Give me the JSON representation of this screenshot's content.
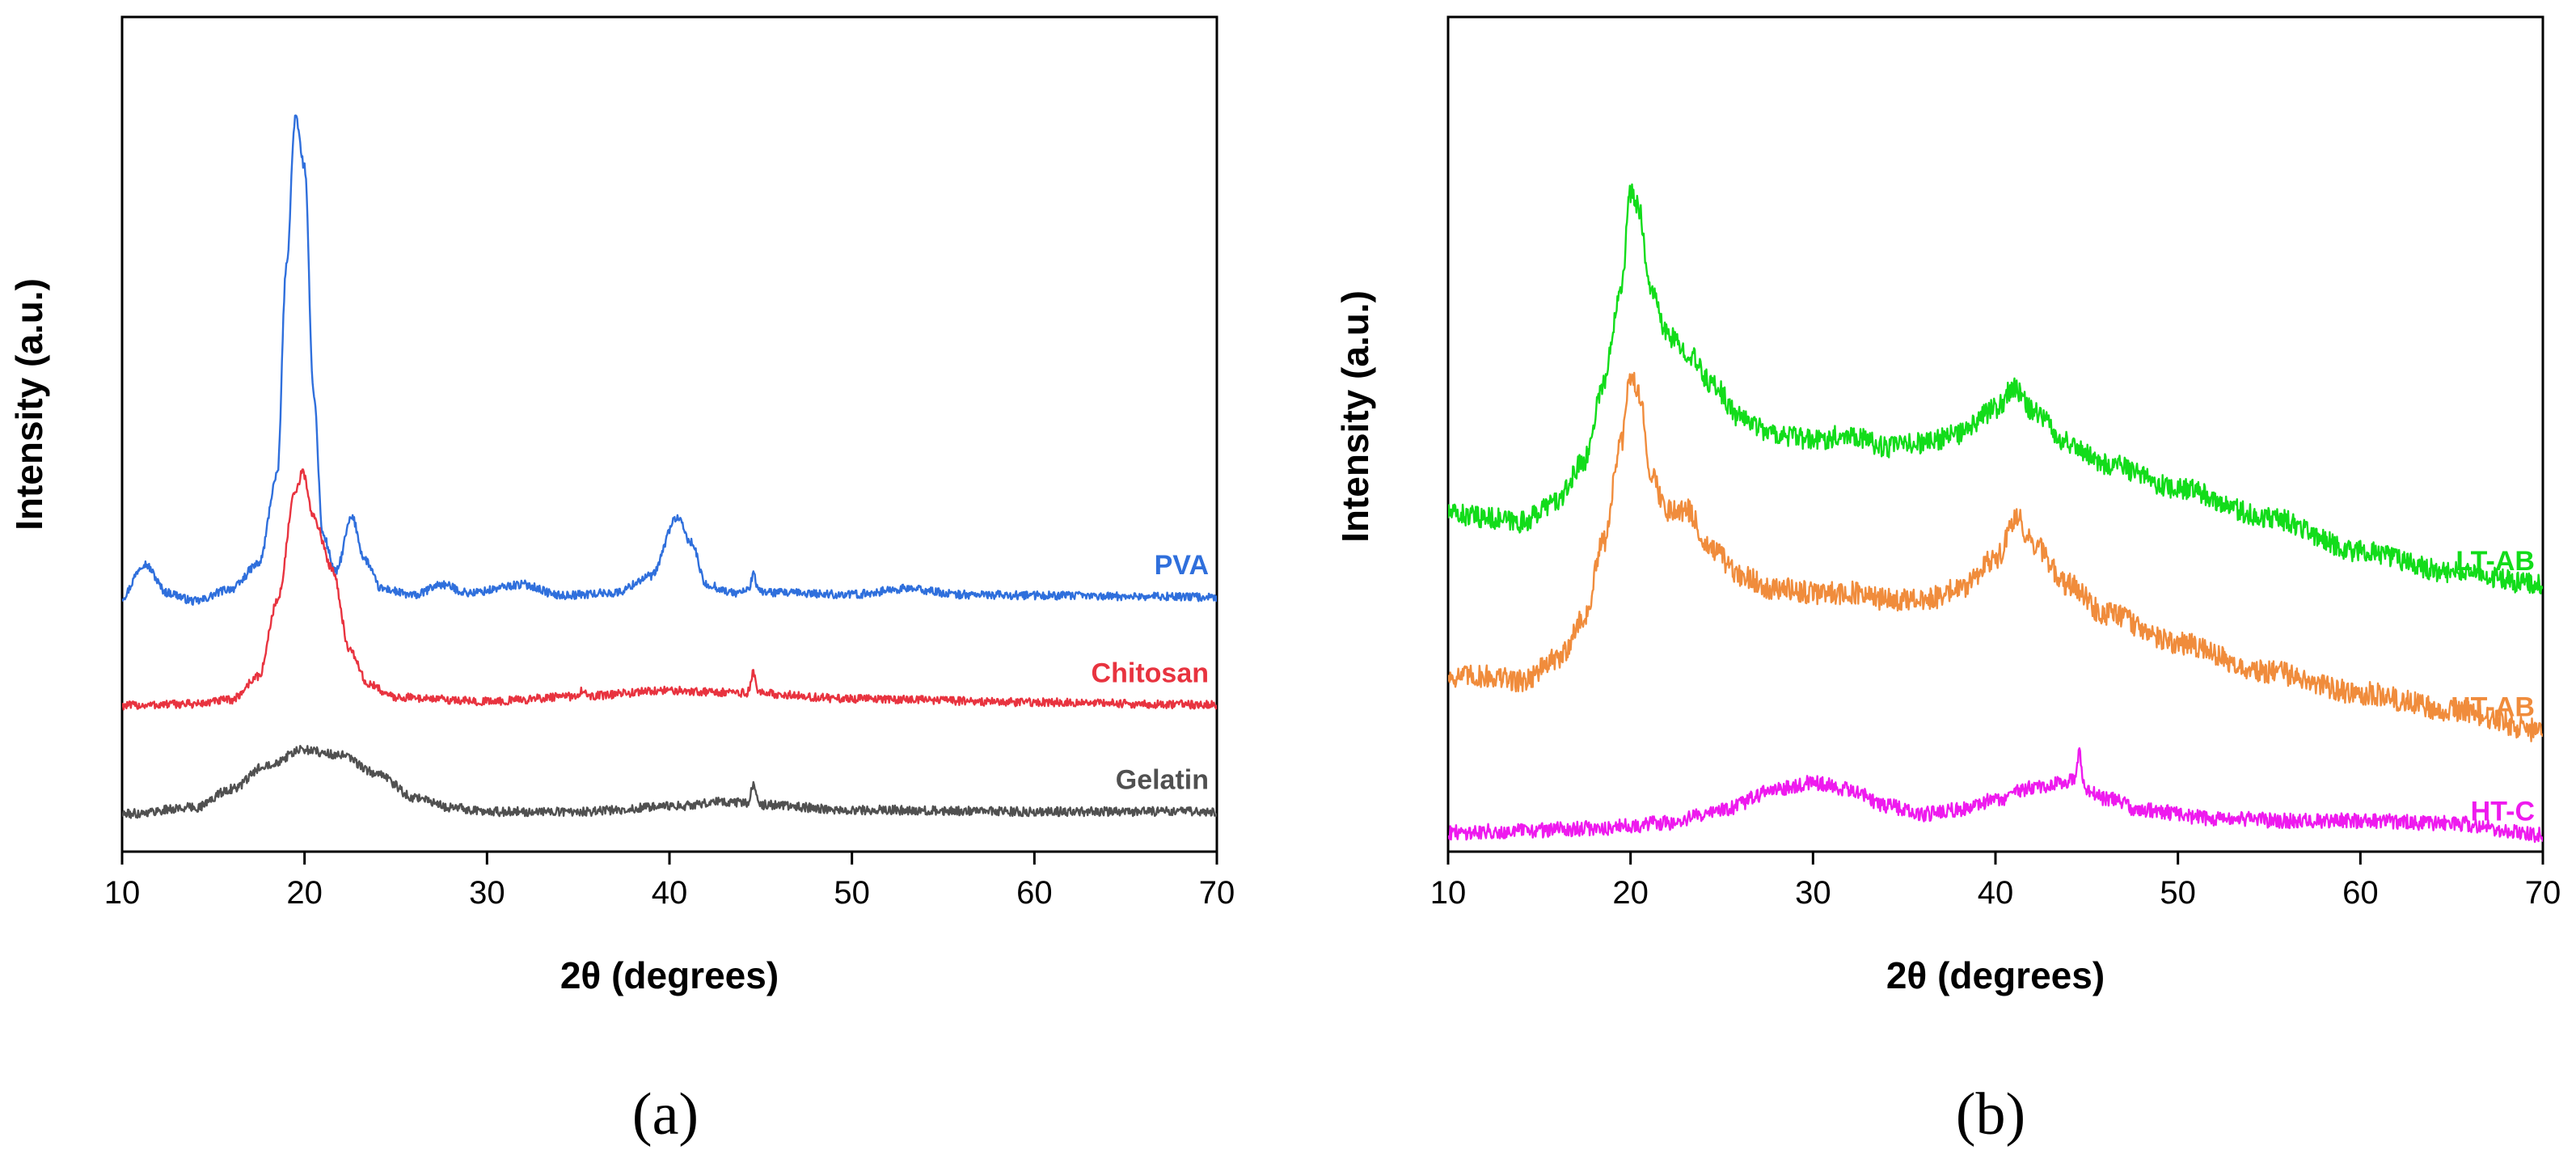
{
  "chart_data": [
    {
      "type": "line",
      "caption": "(a)",
      "xlabel": "2θ (degrees)",
      "ylabel": "Intensity (a.u.)",
      "xlim": [
        10,
        70
      ],
      "ylim": [
        0,
        100
      ],
      "xticks": [
        10,
        20,
        30,
        40,
        50,
        60,
        70
      ],
      "yticks_shown": false,
      "grid": false,
      "legend": "inline labels at right end of each trace",
      "series": [
        {
          "name": "PVA",
          "color": "#2f6fdc",
          "noise": 0.5,
          "baseline": [
            [
              10,
              30.5
            ],
            [
              11.2,
              34.5
            ],
            [
              12.5,
              31
            ],
            [
              14,
              30
            ],
            [
              16,
              31.5
            ],
            [
              17.5,
              34.5
            ],
            [
              18.5,
              45
            ],
            [
              19,
              70
            ],
            [
              19.5,
              88
            ],
            [
              20,
              82
            ],
            [
              20.5,
              55
            ],
            [
              21,
              38
            ],
            [
              21.7,
              33.5
            ],
            [
              22.6,
              40
            ],
            [
              23.3,
              35
            ],
            [
              24.2,
              31.5
            ],
            [
              26,
              30.7
            ],
            [
              27.5,
              32
            ],
            [
              29,
              31
            ],
            [
              32,
              32
            ],
            [
              34,
              30.7
            ],
            [
              37,
              31
            ],
            [
              39,
              33
            ],
            [
              40.4,
              40
            ],
            [
              41.2,
              37
            ],
            [
              42,
              32
            ],
            [
              43.5,
              31
            ],
            [
              44.5,
              31.3
            ],
            [
              46,
              31
            ],
            [
              50,
              30.8
            ],
            [
              53,
              31.5
            ],
            [
              56,
              30.8
            ],
            [
              60,
              30.7
            ],
            [
              65,
              30.6
            ],
            [
              70,
              30.5
            ]
          ],
          "spikes": [
            [
              44.6,
              1.8
            ]
          ]
        },
        {
          "name": "Chitosan",
          "color": "#e8333f",
          "noise": 0.5,
          "baseline": [
            [
              10,
              17.5
            ],
            [
              14,
              17.7
            ],
            [
              16,
              18.2
            ],
            [
              17.5,
              21
            ],
            [
              18.5,
              30
            ],
            [
              19.5,
              43
            ],
            [
              19.9,
              45.5
            ],
            [
              20.5,
              40
            ],
            [
              21.5,
              34
            ],
            [
              22.5,
              24
            ],
            [
              23.5,
              20
            ],
            [
              25,
              18.5
            ],
            [
              30,
              18
            ],
            [
              35,
              18.6
            ],
            [
              40,
              19.3
            ],
            [
              44.5,
              19
            ],
            [
              50,
              18.3
            ],
            [
              60,
              17.9
            ],
            [
              70,
              17.6
            ]
          ],
          "spikes": [
            [
              44.6,
              2.4
            ],
            [
              35.2,
              0.8
            ]
          ]
        },
        {
          "name": "Gelatin",
          "color": "#505050",
          "noise": 0.55,
          "baseline": [
            [
              10,
              4.5
            ],
            [
              14,
              5.3
            ],
            [
              16,
              7.5
            ],
            [
              18,
              10.5
            ],
            [
              20,
              12.2
            ],
            [
              22,
              11.5
            ],
            [
              24,
              9.3
            ],
            [
              26,
              6.5
            ],
            [
              28,
              5.3
            ],
            [
              30,
              4.8
            ],
            [
              35,
              4.8
            ],
            [
              40,
              5.4
            ],
            [
              43,
              6
            ],
            [
              45,
              5.6
            ],
            [
              50,
              5
            ],
            [
              60,
              4.8
            ],
            [
              70,
              4.8
            ]
          ],
          "spikes": [
            [
              44.6,
              2.4
            ]
          ]
        }
      ]
    },
    {
      "type": "line",
      "caption": "(b)",
      "xlabel": "2θ (degrees)",
      "ylabel": "Intensity (a.u.)",
      "xlim": [
        10,
        70
      ],
      "ylim": [
        0,
        100
      ],
      "xticks": [
        10,
        20,
        30,
        40,
        50,
        60,
        70
      ],
      "yticks_shown": false,
      "grid": false,
      "legend": "inline labels at right end of each trace",
      "series": [
        {
          "name": "LT-AB",
          "color": "#12dc1a",
          "noise": 1.3,
          "baseline": [
            [
              10,
              40.5
            ],
            [
              12,
              40
            ],
            [
              14,
              39.5
            ],
            [
              16,
              42
            ],
            [
              17.5,
              47
            ],
            [
              18.5,
              56
            ],
            [
              19.5,
              68
            ],
            [
              20,
              79
            ],
            [
              20.5,
              77
            ],
            [
              21,
              68
            ],
            [
              22,
              62
            ],
            [
              23,
              60
            ],
            [
              24.5,
              56
            ],
            [
              26,
              52
            ],
            [
              28,
              50
            ],
            [
              30,
              49.3
            ],
            [
              32,
              50
            ],
            [
              34,
              48.5
            ],
            [
              36,
              49
            ],
            [
              38,
              50
            ],
            [
              40,
              53
            ],
            [
              41,
              55.5
            ],
            [
              42,
              53
            ],
            [
              44,
              49
            ],
            [
              46,
              46.5
            ],
            [
              50,
              43.5
            ],
            [
              55,
              40
            ],
            [
              60,
              36
            ],
            [
              65,
              33.5
            ],
            [
              70,
              32
            ]
          ],
          "spikes": []
        },
        {
          "name": "HT-AB",
          "color": "#f08c3c",
          "noise": 1.4,
          "baseline": [
            [
              10,
              21
            ],
            [
              12,
              21
            ],
            [
              14,
              20.5
            ],
            [
              16,
              23
            ],
            [
              17.5,
              28
            ],
            [
              18.5,
              37
            ],
            [
              19.5,
              49
            ],
            [
              20,
              57
            ],
            [
              20.5,
              55
            ],
            [
              21,
              46
            ],
            [
              22,
              41
            ],
            [
              23,
              41
            ],
            [
              24.5,
              36
            ],
            [
              26,
              33
            ],
            [
              28,
              31.5
            ],
            [
              30,
              31
            ],
            [
              32,
              31
            ],
            [
              34,
              30.2
            ],
            [
              36,
              30
            ],
            [
              38,
              31.5
            ],
            [
              40,
              35
            ],
            [
              41.2,
              40
            ],
            [
              42,
              37
            ],
            [
              44,
              32
            ],
            [
              46,
              28.5
            ],
            [
              50,
              25
            ],
            [
              55,
              21.5
            ],
            [
              60,
              19
            ],
            [
              65,
              17
            ],
            [
              70,
              14.5
            ]
          ],
          "spikes": []
        },
        {
          "name": "HT-C",
          "color": "#ee1aee",
          "noise": 0.9,
          "baseline": [
            [
              10,
              2.3
            ],
            [
              14,
              2.5
            ],
            [
              18,
              2.8
            ],
            [
              22,
              3.4
            ],
            [
              25,
              5
            ],
            [
              28,
              7.4
            ],
            [
              30,
              8.3
            ],
            [
              32,
              7.4
            ],
            [
              34,
              5.5
            ],
            [
              36,
              4.5
            ],
            [
              38,
              5
            ],
            [
              40,
              6.2
            ],
            [
              42,
              7.6
            ],
            [
              44,
              8.5
            ],
            [
              46,
              6.4
            ],
            [
              48,
              5
            ],
            [
              52,
              4
            ],
            [
              56,
              3.7
            ],
            [
              60,
              3.7
            ],
            [
              65,
              3.4
            ],
            [
              70,
              2
            ]
          ],
          "spikes": [
            [
              44.6,
              3.5
            ]
          ]
        }
      ]
    }
  ]
}
